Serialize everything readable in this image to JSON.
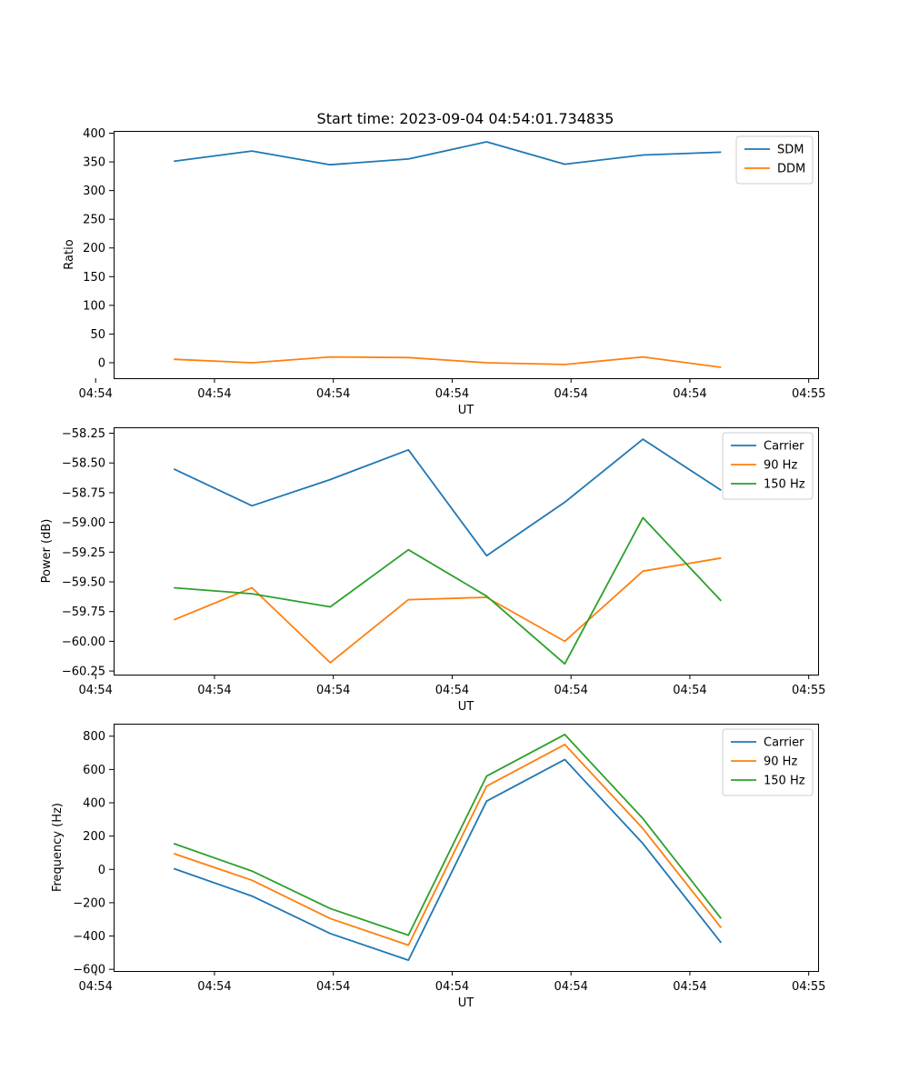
{
  "chart_data": [
    {
      "type": "line",
      "title": "Start time: 2023-09-04 04:54:01.734835",
      "xlabel": "UT",
      "ylabel": "Ratio",
      "x": [
        1,
        2,
        3,
        4,
        5,
        6,
        7,
        8
      ],
      "xlim": [
        0.23,
        9.24
      ],
      "x_ticks": [
        0,
        1.52,
        3.04,
        4.56,
        6.08,
        7.6,
        9.12
      ],
      "x_tick_labels": [
        "04:54",
        "04:54",
        "04:54",
        "04:54",
        "04:54",
        "04:54",
        "04:55"
      ],
      "ylim": [
        -27,
        404
      ],
      "y_ticks": [
        0,
        50,
        100,
        150,
        200,
        250,
        300,
        350,
        400
      ],
      "y_tick_labels": [
        "0",
        "50",
        "100",
        "150",
        "200",
        "250",
        "300",
        "350",
        "400"
      ],
      "legend_position": "top-right",
      "series": [
        {
          "name": "SDM",
          "color": "#1f77b4",
          "values": [
            351,
            369,
            345,
            355,
            385,
            346,
            362,
            367
          ]
        },
        {
          "name": "DDM",
          "color": "#ff7f0e",
          "values": [
            6,
            0,
            10,
            9,
            0,
            -3,
            10,
            -8
          ]
        }
      ]
    },
    {
      "type": "line",
      "xlabel": "UT",
      "ylabel": "Power (dB)",
      "x": [
        1,
        2,
        3,
        4,
        5,
        6,
        7,
        8
      ],
      "xlim": [
        0.23,
        9.24
      ],
      "x_ticks": [
        0,
        1.52,
        3.04,
        4.56,
        6.08,
        7.6,
        9.12
      ],
      "x_tick_labels": [
        "04:54",
        "04:54",
        "04:54",
        "04:54",
        "04:54",
        "04:54",
        "04:55"
      ],
      "ylim": [
        -60.28,
        -58.2
      ],
      "y_ticks": [
        -58.25,
        -58.5,
        -58.75,
        -59.0,
        -59.25,
        -59.5,
        -59.75,
        -60.0,
        -60.25
      ],
      "y_tick_labels": [
        "−58.25",
        "−58.50",
        "−58.75",
        "−59.00",
        "−59.25",
        "−59.50",
        "−59.75",
        "−60.00",
        "−60.25"
      ],
      "legend_position": "top-right",
      "series": [
        {
          "name": "Carrier",
          "color": "#1f77b4",
          "values": [
            -58.55,
            -58.86,
            -58.64,
            -58.39,
            -59.28,
            -58.83,
            -58.3,
            -58.73
          ]
        },
        {
          "name": "90 Hz",
          "color": "#ff7f0e",
          "values": [
            -59.82,
            -59.55,
            -60.18,
            -59.65,
            -59.63,
            -60.0,
            -59.41,
            -59.3
          ]
        },
        {
          "name": "150 Hz",
          "color": "#2ca02c",
          "values": [
            -59.55,
            -59.6,
            -59.71,
            -59.23,
            -59.62,
            -60.19,
            -58.96,
            -59.66
          ]
        }
      ]
    },
    {
      "type": "line",
      "xlabel": "UT",
      "ylabel": "Frequency (Hz)",
      "x": [
        1,
        2,
        3,
        4,
        5,
        6,
        7,
        8
      ],
      "xlim": [
        0.23,
        9.24
      ],
      "x_ticks": [
        0,
        1.52,
        3.04,
        4.56,
        6.08,
        7.6,
        9.12
      ],
      "x_tick_labels": [
        "04:54",
        "04:54",
        "04:54",
        "04:54",
        "04:54",
        "04:54",
        "04:55"
      ],
      "ylim": [
        -610,
        875
      ],
      "y_ticks": [
        -600,
        -400,
        -200,
        0,
        200,
        400,
        600,
        800
      ],
      "y_tick_labels": [
        "−600",
        "−400",
        "−200",
        "0",
        "200",
        "400",
        "600",
        "800"
      ],
      "legend_position": "top-right",
      "series": [
        {
          "name": "Carrier",
          "color": "#1f77b4",
          "values": [
            5,
            -160,
            -385,
            -545,
            410,
            660,
            155,
            -440
          ]
        },
        {
          "name": "90 Hz",
          "color": "#ff7f0e",
          "values": [
            95,
            -65,
            -295,
            -455,
            500,
            750,
            245,
            -350
          ]
        },
        {
          "name": "150 Hz",
          "color": "#2ca02c",
          "values": [
            155,
            -10,
            -235,
            -395,
            560,
            810,
            305,
            -295
          ]
        }
      ]
    }
  ]
}
